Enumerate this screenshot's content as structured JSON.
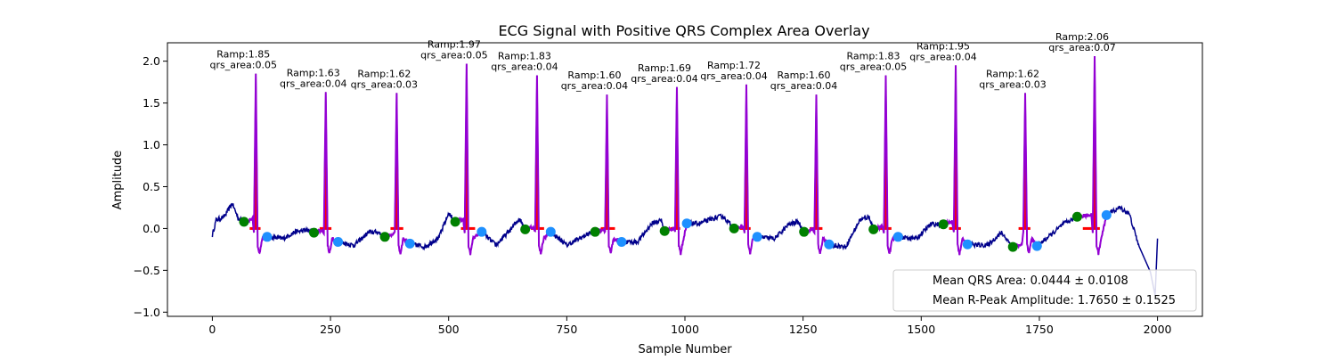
{
  "chart_data": {
    "type": "line",
    "title": "ECG Signal with Positive QRS Complex Area Overlay",
    "xlabel": "Sample Number",
    "ylabel": "Amplitude",
    "xlim": [
      -95,
      2095
    ],
    "ylim": [
      -1.05,
      2.22
    ],
    "xticks": [
      0,
      250,
      500,
      750,
      1000,
      1250,
      1500,
      1750,
      2000
    ],
    "xtick_labels": [
      "0",
      "250",
      "500",
      "750",
      "1000",
      "1250",
      "1500",
      "1750",
      "2000"
    ],
    "yticks": [
      -1.0,
      -0.5,
      0.0,
      0.5,
      1.0,
      1.5,
      2.0
    ],
    "ytick_labels": [
      "−1.0",
      "−0.5",
      "0.0",
      "0.5",
      "1.0",
      "1.5",
      "2.0"
    ],
    "grid": false,
    "colors": {
      "ecg_line": "#00008b",
      "qrs_segment": "#9400d3",
      "qrs_area_fill": "#ff0000",
      "qrs_onset_marker": "#008000",
      "qrs_offset_marker": "#1e90ff"
    },
    "beats": [
      {
        "r_peak_x": 92,
        "r_amp": 1.85,
        "ramp_label": "Ramp:1.85",
        "area_label": "qrs_area:0.05",
        "onset": {
          "x": 67,
          "y": 0.08
        },
        "offset": {
          "x": 116,
          "y": -0.1
        }
      },
      {
        "r_peak_x": 240,
        "r_amp": 1.63,
        "ramp_label": "Ramp:1.63",
        "area_label": "qrs_area:0.04",
        "onset": {
          "x": 215,
          "y": -0.05
        },
        "offset": {
          "x": 266,
          "y": -0.16
        }
      },
      {
        "r_peak_x": 390,
        "r_amp": 1.62,
        "ramp_label": "Ramp:1.62",
        "area_label": "qrs_area:0.03",
        "onset": {
          "x": 365,
          "y": -0.1
        },
        "offset": {
          "x": 418,
          "y": -0.18
        }
      },
      {
        "r_peak_x": 538,
        "r_amp": 1.97,
        "ramp_label": "Ramp:1.97",
        "area_label": "qrs_area:0.05",
        "onset": {
          "x": 514,
          "y": 0.08
        },
        "offset": {
          "x": 570,
          "y": -0.04
        }
      },
      {
        "r_peak_x": 687,
        "r_amp": 1.83,
        "ramp_label": "Ramp:1.83",
        "area_label": "qrs_area:0.04",
        "onset": {
          "x": 662,
          "y": -0.01
        },
        "offset": {
          "x": 716,
          "y": -0.04
        }
      },
      {
        "r_peak_x": 835,
        "r_amp": 1.6,
        "ramp_label": "Ramp:1.60",
        "area_label": "qrs_area:0.04",
        "onset": {
          "x": 810,
          "y": -0.04
        },
        "offset": {
          "x": 866,
          "y": -0.16
        }
      },
      {
        "r_peak_x": 983,
        "r_amp": 1.69,
        "ramp_label": "Ramp:1.69",
        "area_label": "qrs_area:0.04",
        "onset": {
          "x": 957,
          "y": -0.03
        },
        "offset": {
          "x": 1004,
          "y": 0.06
        }
      },
      {
        "r_peak_x": 1130,
        "r_amp": 1.72,
        "ramp_label": "Ramp:1.72",
        "area_label": "qrs_area:0.04",
        "onset": {
          "x": 1104,
          "y": 0.0
        },
        "offset": {
          "x": 1153,
          "y": -0.1
        }
      },
      {
        "r_peak_x": 1278,
        "r_amp": 1.6,
        "ramp_label": "Ramp:1.60",
        "area_label": "qrs_area:0.04",
        "onset": {
          "x": 1252,
          "y": -0.04
        },
        "offset": {
          "x": 1305,
          "y": -0.19
        }
      },
      {
        "r_peak_x": 1425,
        "r_amp": 1.83,
        "ramp_label": "Ramp:1.83",
        "area_label": "qrs_area:0.05",
        "onset": {
          "x": 1399,
          "y": -0.01
        },
        "offset": {
          "x": 1451,
          "y": -0.1
        }
      },
      {
        "r_peak_x": 1573,
        "r_amp": 1.95,
        "ramp_label": "Ramp:1.95",
        "area_label": "qrs_area:0.04",
        "onset": {
          "x": 1547,
          "y": 0.05
        },
        "offset": {
          "x": 1598,
          "y": -0.19
        }
      },
      {
        "r_peak_x": 1720,
        "r_amp": 1.62,
        "ramp_label": "Ramp:1.62",
        "area_label": "qrs_area:0.03",
        "onset": {
          "x": 1694,
          "y": -0.22
        },
        "offset": {
          "x": 1745,
          "y": -0.21
        }
      },
      {
        "r_peak_x": 1867,
        "r_amp": 2.06,
        "ramp_label": "Ramp:2.06",
        "area_label": "qrs_area:0.07",
        "onset": {
          "x": 1830,
          "y": 0.14
        },
        "offset": {
          "x": 1892,
          "y": 0.16
        }
      }
    ],
    "baseline_trace": [
      [
        0,
        -0.08
      ],
      [
        8,
        0.1
      ],
      [
        25,
        0.14
      ],
      [
        42,
        0.3
      ],
      [
        55,
        0.12
      ],
      [
        67,
        0.08
      ],
      [
        116,
        -0.1
      ],
      [
        150,
        -0.12
      ],
      [
        175,
        -0.04
      ],
      [
        200,
        -0.02
      ],
      [
        215,
        -0.05
      ],
      [
        266,
        -0.16
      ],
      [
        300,
        -0.2
      ],
      [
        330,
        -0.05
      ],
      [
        350,
        -0.04
      ],
      [
        365,
        -0.1
      ],
      [
        418,
        -0.18
      ],
      [
        450,
        -0.22
      ],
      [
        480,
        -0.1
      ],
      [
        500,
        0.18
      ],
      [
        514,
        0.08
      ],
      [
        570,
        -0.04
      ],
      [
        600,
        -0.2
      ],
      [
        630,
        -0.02
      ],
      [
        650,
        0.12
      ],
      [
        662,
        -0.01
      ],
      [
        716,
        -0.04
      ],
      [
        750,
        -0.2
      ],
      [
        790,
        -0.08
      ],
      [
        800,
        -0.05
      ],
      [
        810,
        -0.04
      ],
      [
        866,
        -0.16
      ],
      [
        900,
        -0.16
      ],
      [
        930,
        0.06
      ],
      [
        950,
        0.1
      ],
      [
        957,
        -0.03
      ],
      [
        1004,
        0.06
      ],
      [
        1030,
        0.06
      ],
      [
        1060,
        0.12
      ],
      [
        1080,
        0.15
      ],
      [
        1104,
        0.0
      ],
      [
        1153,
        -0.1
      ],
      [
        1190,
        -0.12
      ],
      [
        1220,
        0.05
      ],
      [
        1240,
        0.08
      ],
      [
        1252,
        -0.04
      ],
      [
        1305,
        -0.19
      ],
      [
        1340,
        -0.22
      ],
      [
        1370,
        0.1
      ],
      [
        1390,
        0.14
      ],
      [
        1399,
        -0.01
      ],
      [
        1451,
        -0.1
      ],
      [
        1490,
        -0.12
      ],
      [
        1520,
        0.05
      ],
      [
        1547,
        0.05
      ],
      [
        1598,
        -0.19
      ],
      [
        1640,
        -0.2
      ],
      [
        1670,
        -0.05
      ],
      [
        1694,
        -0.22
      ],
      [
        1745,
        -0.21
      ],
      [
        1780,
        -0.05
      ],
      [
        1800,
        0.05
      ],
      [
        1830,
        0.14
      ],
      [
        1892,
        0.16
      ],
      [
        1920,
        0.25
      ],
      [
        1940,
        0.18
      ],
      [
        1960,
        -0.2
      ],
      [
        1985,
        -0.52
      ],
      [
        1995,
        -0.8
      ],
      [
        2000,
        -0.12
      ]
    ],
    "legend": {
      "location": "lower-right",
      "entries": [
        "Mean QRS Area: 0.0444 ± 0.0108",
        "Mean R-Peak Amplitude: 1.7650 ± 0.1525"
      ]
    }
  }
}
